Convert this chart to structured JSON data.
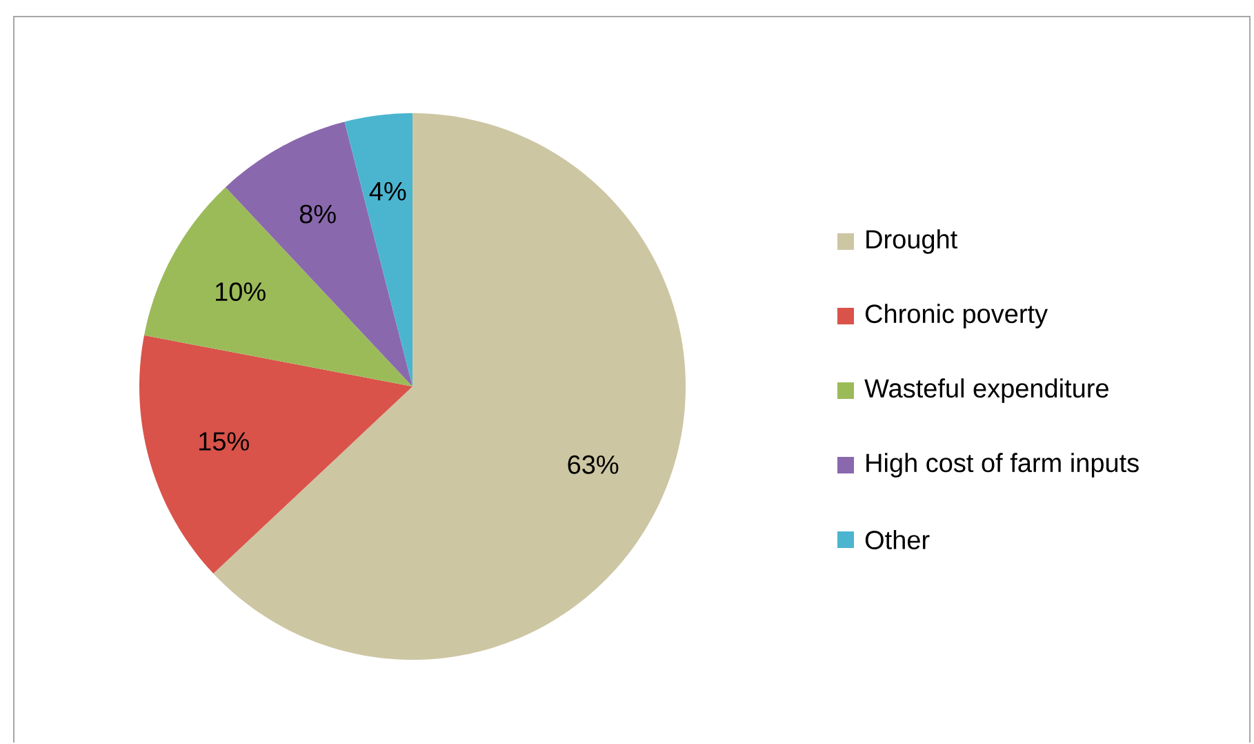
{
  "chart_data": {
    "type": "pie",
    "categories": [
      "Drought",
      "Chronic poverty",
      "Wasteful expenditure",
      "High cost of farm inputs",
      "Other"
    ],
    "values": [
      63,
      15,
      10,
      8,
      4
    ],
    "value_labels": [
      "63%",
      "15%",
      "10%",
      "8%",
      "4%"
    ],
    "colors": [
      "#cdc6a3",
      "#d9534a",
      "#9bbb59",
      "#8a68ad",
      "#4bb5cf"
    ],
    "legend": "right"
  }
}
